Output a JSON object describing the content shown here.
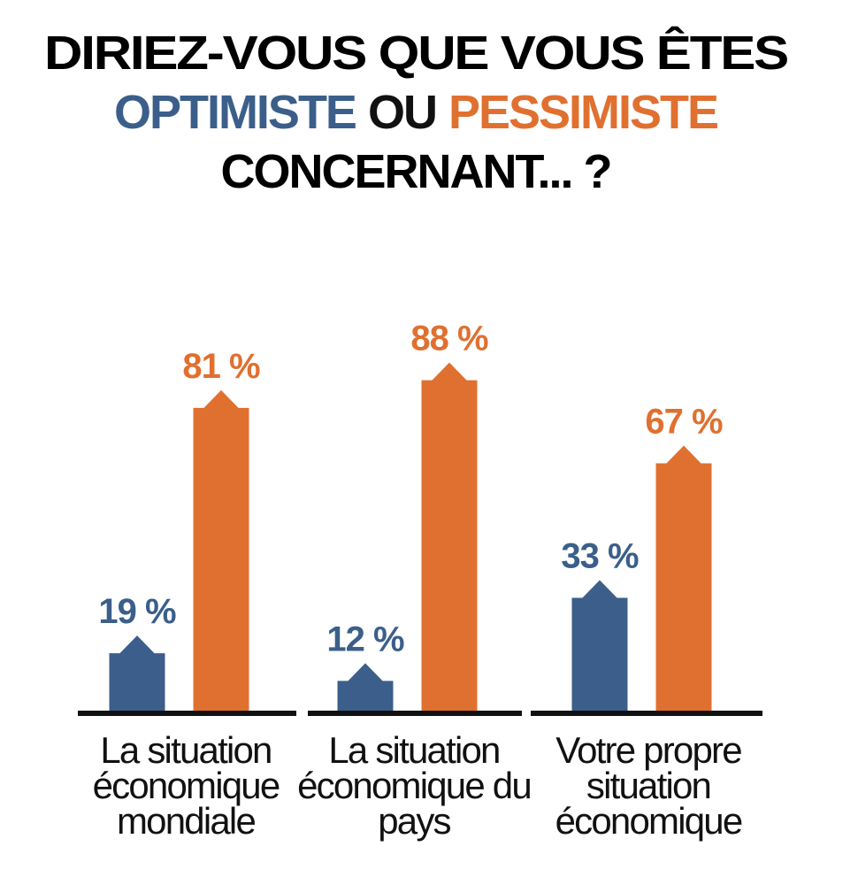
{
  "chart_data": {
    "type": "bar",
    "title_lines": [
      "DIRIEZ-VOUS QUE VOUS ÊTES",
      "OU",
      "CONCERNANT... ?"
    ],
    "categories": [
      "La situation économique mondiale",
      "La situation économique du pays",
      "Votre propre situation économique"
    ],
    "series": [
      {
        "name": "OPTIMISTE",
        "color": "#3b5f8a",
        "values": [
          19,
          12,
          33
        ],
        "value_labels": [
          "19 %",
          "12 %",
          "33 %"
        ]
      },
      {
        "name": "PESSIMISTE",
        "color": "#e07030",
        "values": [
          81,
          88,
          67
        ],
        "value_labels": [
          "81 %",
          "88 %",
          "67 %"
        ]
      }
    ],
    "ylim": [
      0,
      100
    ]
  }
}
